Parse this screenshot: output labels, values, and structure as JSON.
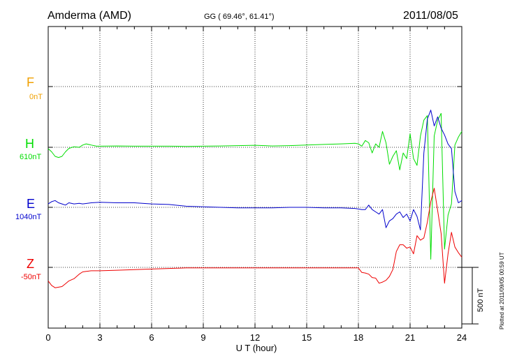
{
  "header": {
    "station": "Amderma (AMD)",
    "coords": "GG ( 69.46°,  61.41°)",
    "date": "2011/08/05"
  },
  "components": [
    {
      "key": "F",
      "name": "F",
      "baseline": "0nT",
      "color": "#f0a000"
    },
    {
      "key": "H",
      "name": "H",
      "baseline": "610nT",
      "color": "#00dd00"
    },
    {
      "key": "E",
      "name": "E",
      "baseline": "1040nT",
      "color": "#0000cc"
    },
    {
      "key": "Z",
      "name": "Z",
      "baseline": "-50nT",
      "color": "#ee0000"
    }
  ],
  "scale_bar": {
    "label": "500 nT",
    "value_nT": 500
  },
  "plotted_note": "Plotted at 2011/09/05 00:59 UT",
  "chart_data": {
    "type": "line",
    "xlabel": "U T (hour)",
    "xlim": [
      0,
      24
    ],
    "xticks": [
      "0",
      "3",
      "6",
      "9",
      "12",
      "15",
      "18",
      "21",
      "24"
    ],
    "grid": true,
    "units": "nT",
    "series": [
      {
        "name": "H",
        "color": "#00dd00",
        "x": [
          0,
          0.2,
          0.4,
          0.6,
          0.8,
          1.0,
          1.2,
          1.5,
          1.8,
          2.0,
          2.2,
          2.5,
          2.8,
          3,
          4,
          5,
          6,
          7,
          8,
          9,
          10,
          11,
          12,
          13,
          14,
          15,
          16,
          17,
          17.8,
          18.0,
          18.2,
          18.4,
          18.6,
          18.8,
          19.0,
          19.2,
          19.4,
          19.6,
          19.8,
          20.0,
          20.2,
          20.4,
          20.6,
          20.8,
          21.0,
          21.2,
          21.4,
          21.6,
          21.8,
          22.0,
          22.2,
          22.4,
          22.6,
          22.8,
          23.0,
          23.2,
          23.4,
          23.6,
          23.8,
          24.0
        ],
        "y": [
          -12,
          -40,
          -80,
          -90,
          -80,
          -40,
          -10,
          5,
          0,
          20,
          30,
          20,
          10,
          10,
          12,
          10,
          10,
          10,
          8,
          10,
          12,
          15,
          18,
          12,
          15,
          20,
          25,
          30,
          35,
          30,
          10,
          60,
          40,
          -50,
          30,
          0,
          140,
          40,
          -150,
          -80,
          -30,
          -200,
          -50,
          -100,
          120,
          -100,
          -160,
          100,
          240,
          280,
          -990,
          100,
          240,
          300,
          -900,
          -600,
          -500,
          20,
          90,
          140
        ]
      },
      {
        "name": "E",
        "color": "#0000cc",
        "x": [
          0,
          0.2,
          0.4,
          0.6,
          0.8,
          1.0,
          1.2,
          1.5,
          1.8,
          2.0,
          2.5,
          3,
          4,
          5,
          6,
          7,
          8,
          9,
          10,
          11,
          12,
          13,
          14,
          15,
          16,
          17,
          17.8,
          18.0,
          18.2,
          18.4,
          18.6,
          18.8,
          19.0,
          19.2,
          19.4,
          19.6,
          19.8,
          20.0,
          20.2,
          20.4,
          20.6,
          20.8,
          21.0,
          21.2,
          21.4,
          21.6,
          21.8,
          22.0,
          22.2,
          22.4,
          22.6,
          22.8,
          23.0,
          23.2,
          23.4,
          23.6,
          23.8,
          24.0
        ],
        "y": [
          30,
          50,
          60,
          40,
          30,
          20,
          40,
          30,
          35,
          30,
          40,
          45,
          40,
          40,
          30,
          25,
          10,
          5,
          0,
          -5,
          -5,
          -5,
          0,
          0,
          -5,
          -5,
          -10,
          -15,
          -20,
          -20,
          20,
          -20,
          -40,
          -60,
          -20,
          -180,
          -120,
          -100,
          -60,
          -40,
          -90,
          -60,
          -120,
          -20,
          -80,
          -200,
          480,
          780,
          860,
          720,
          800,
          700,
          640,
          560,
          520,
          140,
          40,
          60
        ]
      },
      {
        "name": "Z",
        "color": "#ee0000",
        "x": [
          0,
          0.2,
          0.4,
          0.6,
          0.8,
          1.0,
          1.2,
          1.5,
          1.8,
          2.0,
          2.2,
          2.5,
          3,
          4,
          5,
          6,
          7,
          8,
          9,
          10,
          11,
          12,
          13,
          14,
          15,
          16,
          17,
          17.8,
          18.0,
          18.2,
          18.4,
          18.6,
          18.8,
          19.0,
          19.2,
          19.4,
          19.6,
          19.8,
          20.0,
          20.2,
          20.4,
          20.6,
          20.8,
          21.0,
          21.2,
          21.4,
          21.6,
          21.8,
          22.0,
          22.2,
          22.4,
          22.6,
          22.8,
          23.0,
          23.2,
          23.4,
          23.6,
          23.8,
          24.0
        ],
        "y": [
          -120,
          -160,
          -180,
          -175,
          -170,
          -145,
          -120,
          -100,
          -60,
          -40,
          -35,
          -30,
          -30,
          -25,
          -20,
          -15,
          -10,
          -5,
          -5,
          -5,
          -5,
          -5,
          -5,
          -5,
          -5,
          -5,
          -5,
          -5,
          -5,
          -45,
          -50,
          -60,
          -90,
          -95,
          -140,
          -130,
          -115,
          -80,
          -20,
          140,
          200,
          200,
          170,
          180,
          120,
          280,
          240,
          260,
          400,
          580,
          700,
          500,
          300,
          -140,
          120,
          310,
          180,
          130,
          90
        ]
      }
    ],
    "baselines_nT": {
      "F": 0,
      "H": 610,
      "E": 1040,
      "Z": -50
    }
  }
}
